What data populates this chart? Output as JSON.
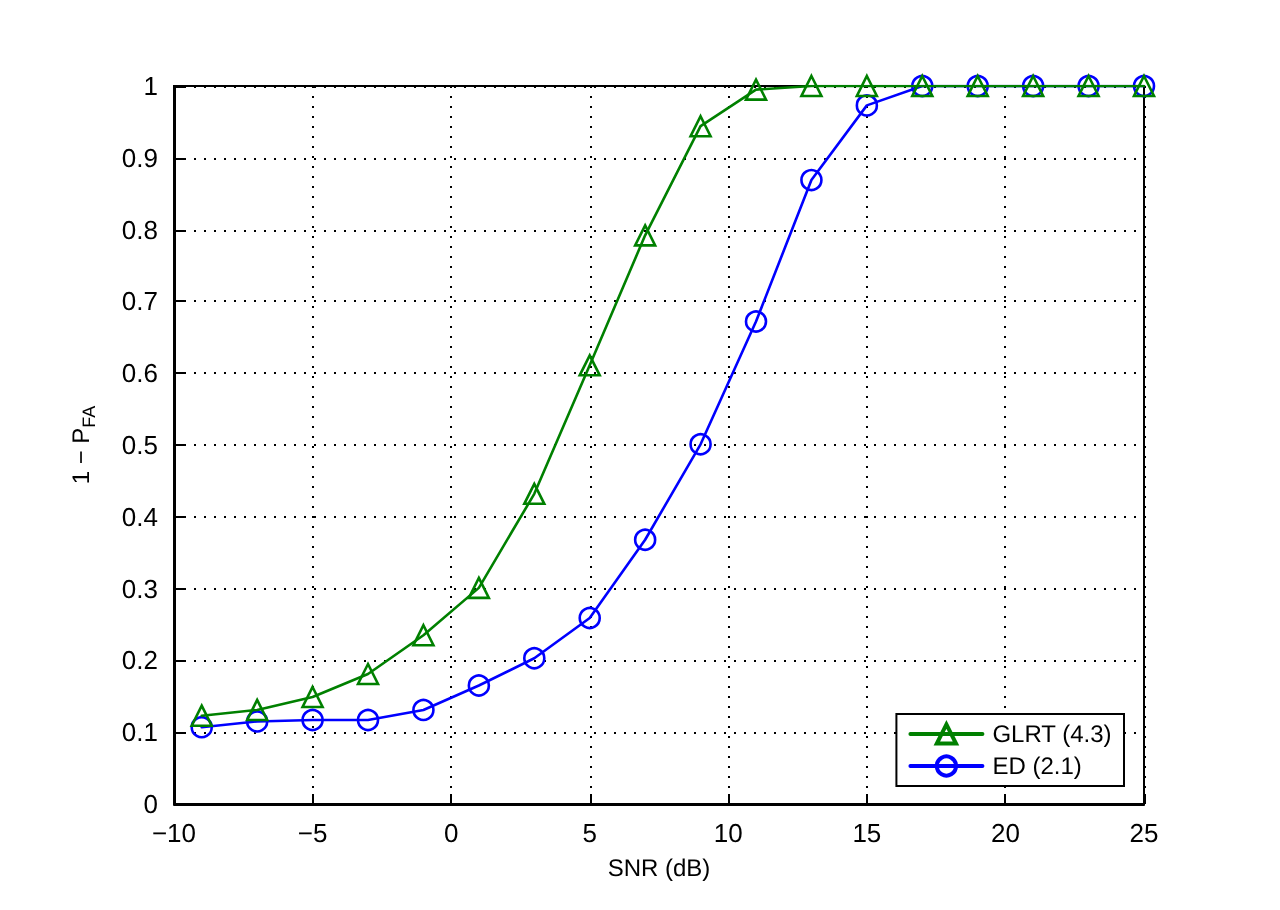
{
  "chart_data": {
    "type": "line",
    "xlabel": "SNR (dB)",
    "ylabel": "1 − P$_{FA}$",
    "x": [
      -9,
      -7,
      -5,
      -3,
      -1,
      1,
      3,
      5,
      7,
      9,
      11,
      13,
      15,
      17,
      19,
      21,
      23,
      25
    ],
    "series": [
      {
        "name": "GLRT (4.3)",
        "color": "#008000",
        "marker": "triangle",
        "values": [
          0.123,
          0.131,
          0.149,
          0.181,
          0.235,
          0.301,
          0.432,
          0.611,
          0.792,
          0.944,
          0.995,
          1,
          1,
          1,
          1,
          1,
          1,
          1
        ]
      },
      {
        "name": "ED (2.1)",
        "color": "#0000ff",
        "marker": "circle",
        "values": [
          0.107,
          0.115,
          0.117,
          0.117,
          0.131,
          0.165,
          0.203,
          0.259,
          0.368,
          0.501,
          0.672,
          0.869,
          0.973,
          1,
          1,
          1,
          1,
          1
        ]
      }
    ],
    "xlim": [
      -10,
      25
    ],
    "xticks": [
      {
        "value": -10,
        "label": "−10"
      },
      {
        "value": -5,
        "label": "−5"
      },
      0,
      5,
      10,
      15,
      20,
      25
    ],
    "ylim": [
      0,
      1
    ],
    "yticks": [
      0,
      0.1,
      0.2,
      0.3,
      0.4,
      0.5,
      0.6,
      0.7,
      0.8,
      0.9,
      1
    ],
    "grid": true,
    "legend": "bottom right",
    "line_style": "solid"
  }
}
